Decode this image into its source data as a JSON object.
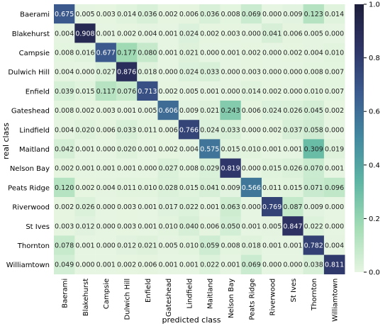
{
  "chart_data": {
    "type": "heatmap",
    "xlabel": "predicted class",
    "ylabel": "real class",
    "x_categories": [
      "Baerami",
      "Blakehurst",
      "Campsie",
      "Dulwich Hill",
      "Enfield",
      "Gateshead",
      "Lindfield",
      "Maitland",
      "Nelson Bay",
      "Peats Ridge",
      "Riverwood",
      "St Ives",
      "Thornton",
      "Williamtown"
    ],
    "y_categories": [
      "Baerami",
      "Blakehurst",
      "Campsie",
      "Dulwich Hill",
      "Enfield",
      "Gateshead",
      "Lindfield",
      "Maitland",
      "Nelson Bay",
      "Peats Ridge",
      "Riverwood",
      "St Ives",
      "Thornton",
      "Williamtown"
    ],
    "values": [
      [
        0.675,
        0.005,
        0.003,
        0.014,
        0.036,
        0.002,
        0.006,
        0.036,
        0.008,
        0.069,
        0.0,
        0.009,
        0.123,
        0.014
      ],
      [
        0.004,
        0.908,
        0.001,
        0.002,
        0.004,
        0.001,
        0.024,
        0.002,
        0.003,
        0.0,
        0.041,
        0.006,
        0.005,
        0.0
      ],
      [
        0.008,
        0.016,
        0.677,
        0.177,
        0.08,
        0.001,
        0.021,
        0.0,
        0.001,
        0.002,
        0.0,
        0.002,
        0.004,
        0.01
      ],
      [
        0.004,
        0.0,
        0.027,
        0.876,
        0.018,
        0.0,
        0.024,
        0.033,
        0.0,
        0.003,
        0.0,
        0.0,
        0.008,
        0.007
      ],
      [
        0.039,
        0.015,
        0.117,
        0.076,
        0.713,
        0.002,
        0.005,
        0.001,
        0.0,
        0.014,
        0.002,
        0.0,
        0.01,
        0.007
      ],
      [
        0.008,
        0.002,
        0.003,
        0.001,
        0.005,
        0.606,
        0.009,
        0.021,
        0.243,
        0.006,
        0.024,
        0.026,
        0.045,
        0.002
      ],
      [
        0.004,
        0.02,
        0.006,
        0.033,
        0.011,
        0.006,
        0.766,
        0.024,
        0.033,
        0.0,
        0.002,
        0.037,
        0.058,
        0.0
      ],
      [
        0.042,
        0.001,
        0.0,
        0.02,
        0.001,
        0.002,
        0.004,
        0.575,
        0.015,
        0.01,
        0.001,
        0.001,
        0.309,
        0.019
      ],
      [
        0.002,
        0.001,
        0.001,
        0.001,
        0.0,
        0.027,
        0.008,
        0.029,
        0.819,
        0.0,
        0.015,
        0.026,
        0.07,
        0.001
      ],
      [
        0.12,
        0.002,
        0.004,
        0.011,
        0.01,
        0.028,
        0.015,
        0.041,
        0.009,
        0.566,
        0.011,
        0.015,
        0.071,
        0.096
      ],
      [
        0.002,
        0.026,
        0.0,
        0.003,
        0.001,
        0.017,
        0.022,
        0.001,
        0.063,
        0.0,
        0.769,
        0.087,
        0.009,
        0.0
      ],
      [
        0.003,
        0.012,
        0.0,
        0.003,
        0.001,
        0.01,
        0.04,
        0.006,
        0.05,
        0.001,
        0.005,
        0.847,
        0.022,
        0.0
      ],
      [
        0.078,
        0.001,
        0.0,
        0.012,
        0.021,
        0.005,
        0.01,
        0.059,
        0.008,
        0.018,
        0.001,
        0.001,
        0.782,
        0.004
      ],
      [
        0.049,
        0.0,
        0.001,
        0.002,
        0.006,
        0.001,
        0.001,
        0.022,
        0.001,
        0.069,
        0.0,
        0.0,
        0.038,
        0.811
      ]
    ],
    "colorbar": {
      "range": [
        0.0,
        1.0
      ],
      "ticks": [
        "0.0",
        "0.2",
        "0.4",
        "0.6",
        "0.8",
        "1.0"
      ],
      "colormap": [
        "#e6f5e1",
        "#a3dcb5",
        "#5fb6a4",
        "#4389a0",
        "#3c5b8f",
        "#2e3466",
        "#1e1e3c"
      ]
    },
    "grid": false,
    "legend": "colorbar-right"
  }
}
